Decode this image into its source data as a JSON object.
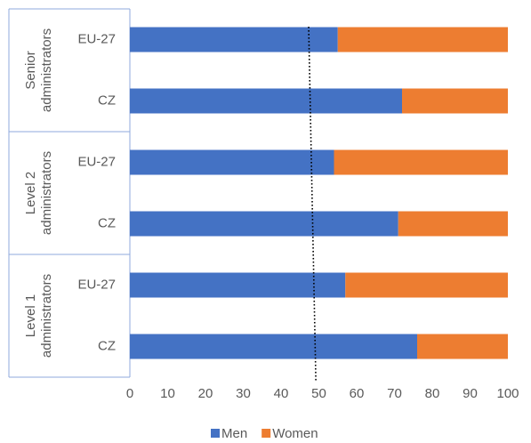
{
  "chart_data": {
    "type": "stacked_barh",
    "groups": [
      {
        "lines": [
          "Senior",
          "administrators"
        ]
      },
      {
        "lines": [
          "Level 2",
          "administrators"
        ]
      },
      {
        "lines": [
          "Level 1",
          "administrators"
        ]
      }
    ],
    "categories": [
      "EU-27",
      "CZ",
      "EU-27",
      "CZ",
      "EU-27",
      "CZ"
    ],
    "series": [
      {
        "name": "Men",
        "color": "#4472c4",
        "values": [
          55,
          72,
          54,
          71,
          57,
          76
        ]
      },
      {
        "name": "Women",
        "color": "#ed7d31",
        "values": [
          45,
          28,
          46,
          29,
          43,
          24
        ]
      }
    ],
    "reference_line": {
      "top": 47.3,
      "bottom": 49.2
    },
    "xlim": [
      0,
      100
    ],
    "xticks": [
      0,
      10,
      20,
      30,
      40,
      50,
      60,
      70,
      80,
      90,
      100
    ],
    "legend": "bottom"
  }
}
